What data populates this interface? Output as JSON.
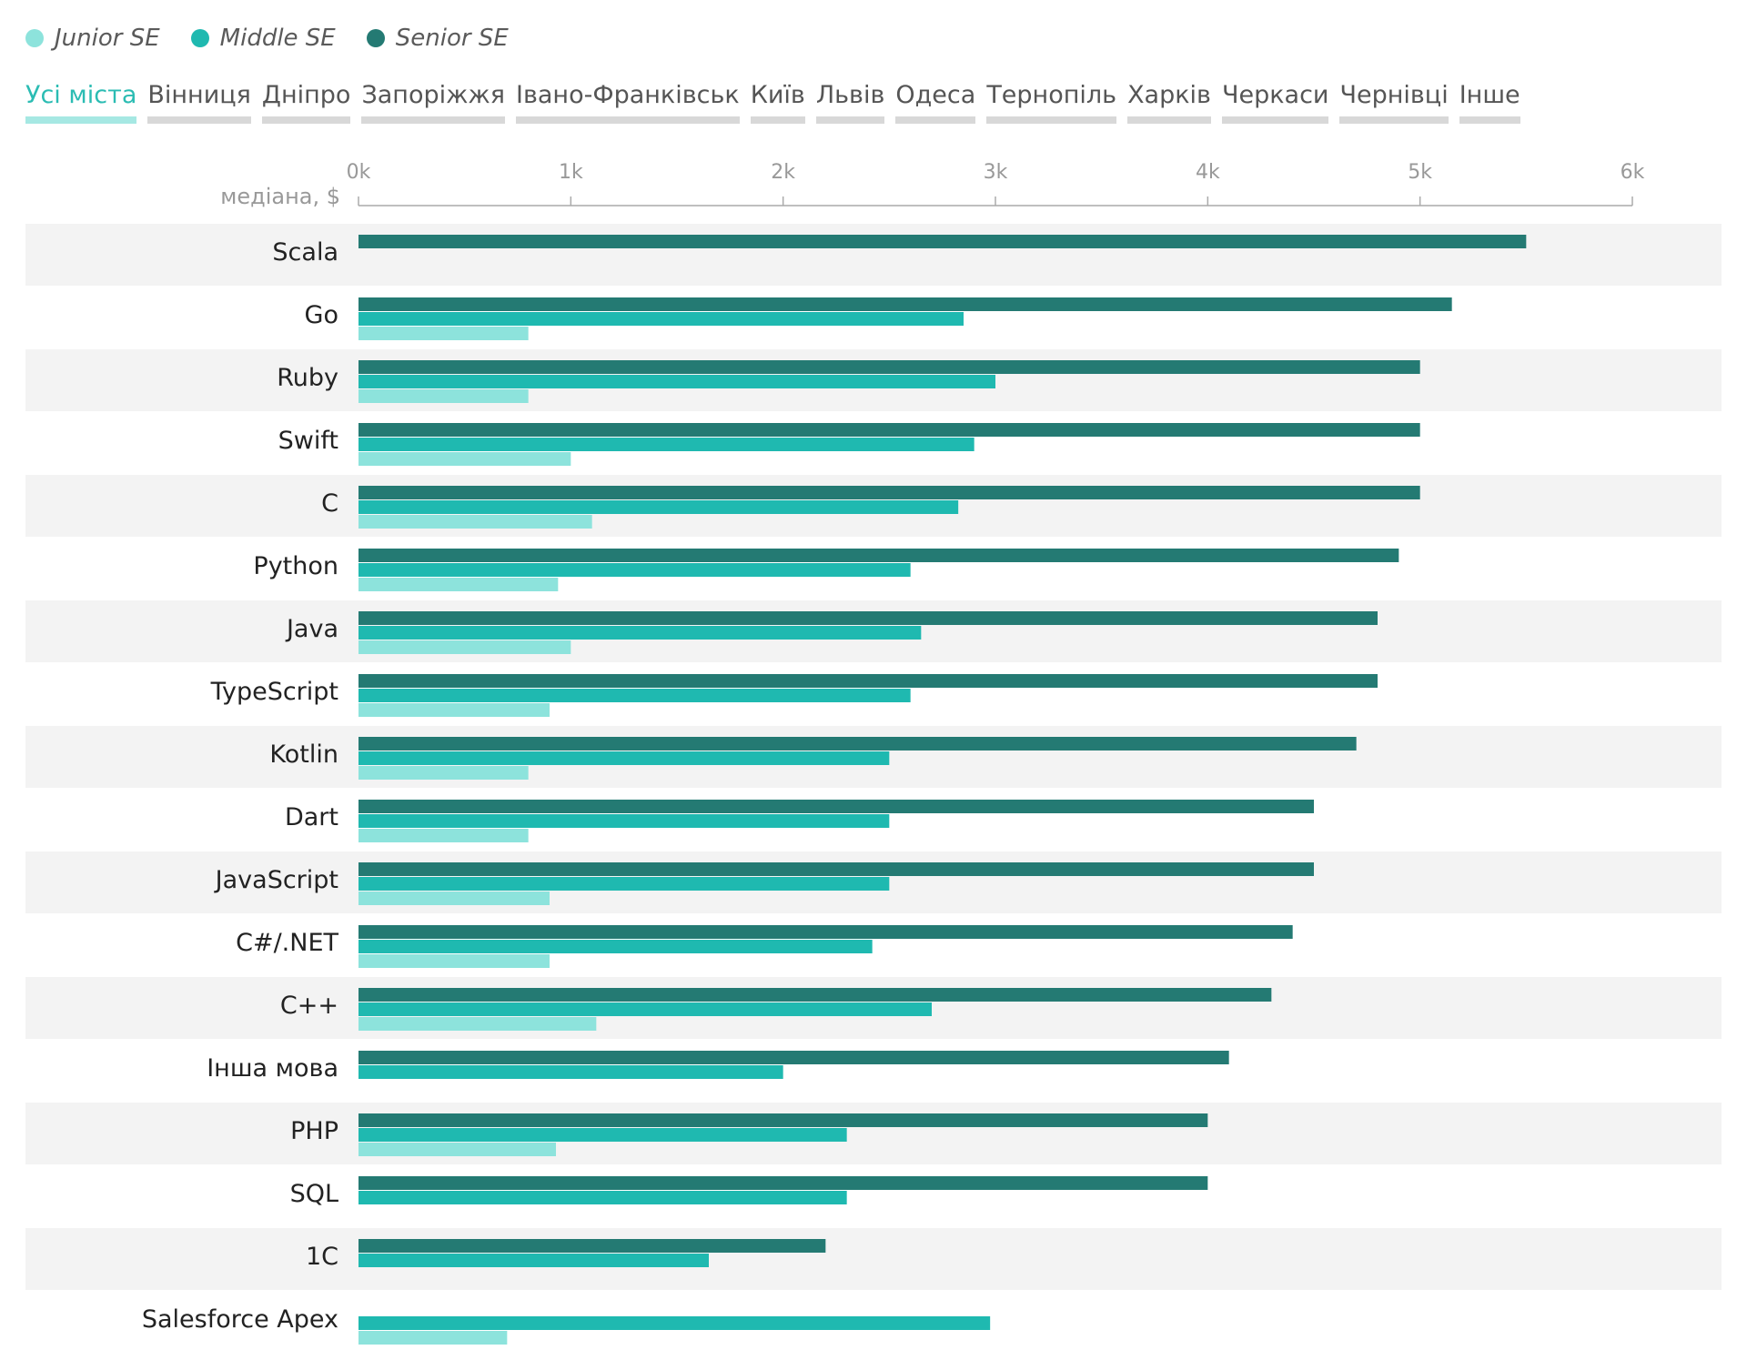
{
  "legend": [
    {
      "label": "Junior SE",
      "color": "#8de3dc"
    },
    {
      "label": "Middle SE",
      "color": "#1fb9b0"
    },
    {
      "label": "Senior SE",
      "color": "#247a73"
    }
  ],
  "tabs": [
    {
      "label": "Усі міста",
      "active": true
    },
    {
      "label": "Вінниця"
    },
    {
      "label": "Дніпро"
    },
    {
      "label": "Запоріжжя"
    },
    {
      "label": "Івано-Франківськ"
    },
    {
      "label": "Київ"
    },
    {
      "label": "Львів"
    },
    {
      "label": "Одеса"
    },
    {
      "label": "Тернопіль"
    },
    {
      "label": "Харків"
    },
    {
      "label": "Черкаси"
    },
    {
      "label": "Чернівці"
    },
    {
      "label": "Інше"
    }
  ],
  "chart_data": {
    "type": "bar",
    "orientation": "horizontal",
    "xlabel": "медіана, $",
    "xlim": [
      0,
      6000
    ],
    "ticks": [
      {
        "value": 0,
        "label": "0k"
      },
      {
        "value": 1000,
        "label": "1k"
      },
      {
        "value": 2000,
        "label": "2k"
      },
      {
        "value": 3000,
        "label": "3k"
      },
      {
        "value": 4000,
        "label": "4k"
      },
      {
        "value": 5000,
        "label": "5k"
      },
      {
        "value": 6000,
        "label": "6k"
      }
    ],
    "categories": [
      "Scala",
      "Go",
      "Ruby",
      "Swift",
      "C",
      "Python",
      "Java",
      "TypeScript",
      "Kotlin",
      "Dart",
      "JavaScript",
      "C#/.NET",
      "C++",
      "Інша мова",
      "PHP",
      "SQL",
      "1C",
      "Salesforce Apex"
    ],
    "series": [
      {
        "name": "Senior SE",
        "color": "#247a73",
        "values": [
          5500,
          5150,
          5000,
          5000,
          5000,
          4900,
          4800,
          4800,
          4700,
          4500,
          4500,
          4400,
          4300,
          4100,
          4000,
          4000,
          2200,
          null
        ]
      },
      {
        "name": "Middle SE",
        "color": "#1fb9b0",
        "values": [
          null,
          2850,
          3000,
          2900,
          2825,
          2600,
          2650,
          2600,
          2500,
          2500,
          2500,
          2420,
          2700,
          2000,
          2300,
          2300,
          1650,
          2975
        ]
      },
      {
        "name": "Junior SE",
        "color": "#8de3dc",
        "values": [
          null,
          800,
          800,
          1000,
          1100,
          940,
          1000,
          900,
          800,
          800,
          900,
          900,
          1120,
          null,
          930,
          null,
          null,
          700
        ]
      }
    ],
    "grid": false,
    "legend_position": "top-left"
  }
}
